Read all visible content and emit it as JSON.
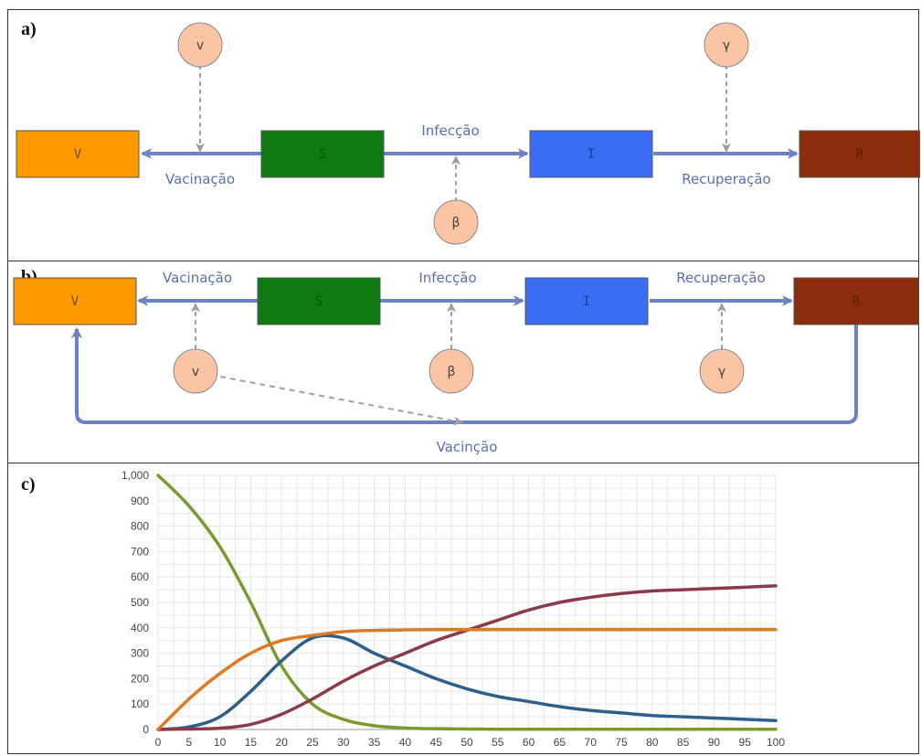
{
  "panels": {
    "a": {
      "label": "a)",
      "boxes": {
        "v": "V",
        "s": "S",
        "i": "I",
        "r": "R"
      },
      "edges": {
        "vacinacao": "Vacinação",
        "infeccao": "Infecção",
        "recuperacao": "Recuperação"
      },
      "params": {
        "nu": "v",
        "beta": "β",
        "gamma": "γ"
      }
    },
    "b": {
      "label": "b)",
      "boxes": {
        "v": "V",
        "s": "S",
        "i": "I",
        "r": "R"
      },
      "edges": {
        "vacinacao": "Vacinação",
        "infeccao": "Infecção",
        "recuperacao": "Recuperação",
        "vacincao": "Vacinção"
      },
      "params": {
        "nu": "v",
        "beta": "β",
        "gamma": "γ"
      }
    },
    "c": {
      "label": "c)"
    }
  },
  "colors": {
    "V": "#ff9900",
    "S": "#0f7a12",
    "I": "#3a6df5",
    "R": "#8b2c0c",
    "edge": "#6b82c4",
    "param": "#fbc4a4"
  },
  "chart_data": {
    "type": "line",
    "title": "",
    "xlabel": "",
    "ylabel": "",
    "xlim": [
      0,
      100
    ],
    "ylim": [
      0,
      1000
    ],
    "grid": true,
    "x_ticks": [
      "0",
      "5",
      "10",
      "15",
      "20",
      "25",
      "30",
      "35",
      "40",
      "45",
      "50",
      "55",
      "60",
      "65",
      "70",
      "75",
      "80",
      "85",
      "90",
      "95",
      "100"
    ],
    "y_ticks": [
      "0",
      "100",
      "200",
      "300",
      "400",
      "500",
      "600",
      "700",
      "800",
      "900",
      "1,000"
    ],
    "x": [
      0,
      5,
      10,
      15,
      20,
      25,
      30,
      35,
      40,
      45,
      50,
      55,
      60,
      65,
      70,
      75,
      80,
      85,
      90,
      95,
      100
    ],
    "series": [
      {
        "color": "#7a9a2e",
        "values": [
          1000,
          880,
          720,
          500,
          250,
          100,
          40,
          15,
          6,
          3,
          2,
          1,
          1,
          1,
          1,
          1,
          1,
          1,
          1,
          1,
          1
        ]
      },
      {
        "color": "#2e5f8a",
        "values": [
          0,
          10,
          50,
          150,
          270,
          360,
          360,
          300,
          250,
          200,
          160,
          130,
          110,
          90,
          75,
          65,
          55,
          50,
          45,
          40,
          35
        ]
      },
      {
        "color": "#8b3a4a",
        "values": [
          0,
          2,
          5,
          20,
          60,
          120,
          190,
          250,
          300,
          350,
          390,
          430,
          470,
          500,
          520,
          535,
          545,
          550,
          555,
          560,
          565
        ]
      },
      {
        "color": "#e07a22",
        "values": [
          0,
          120,
          220,
          300,
          350,
          370,
          385,
          390,
          392,
          393,
          393,
          393,
          393,
          393,
          393,
          393,
          393,
          393,
          393,
          393,
          393
        ]
      }
    ]
  }
}
